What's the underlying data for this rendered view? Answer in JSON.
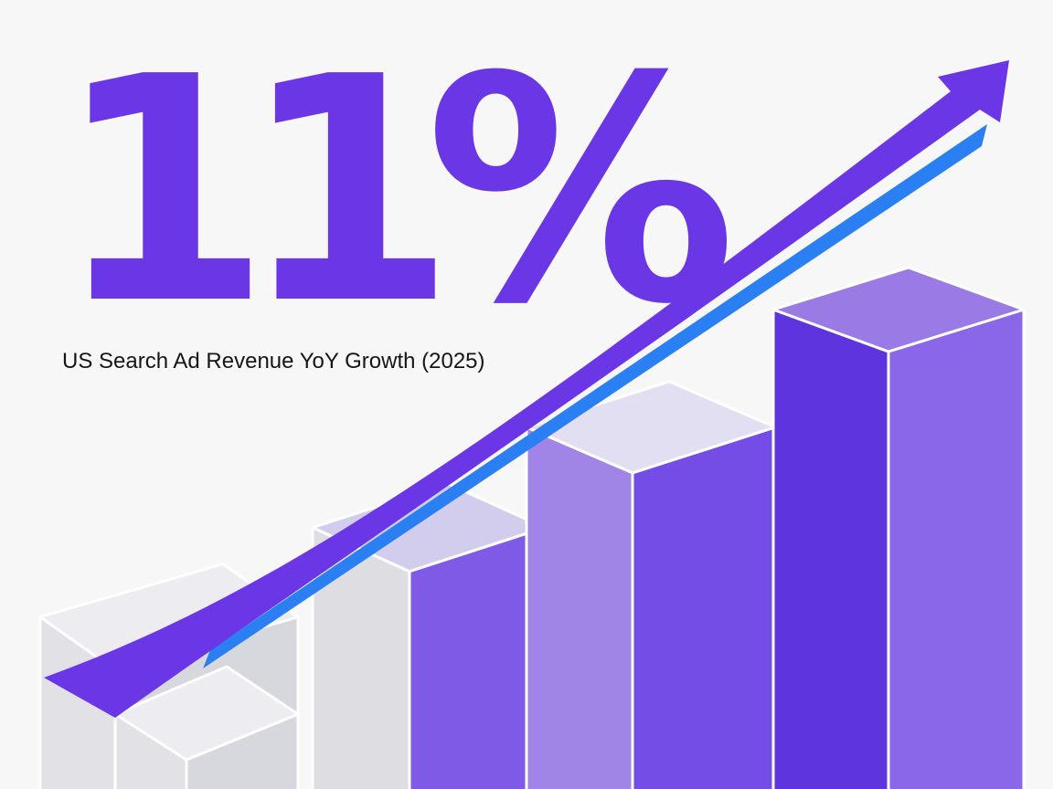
{
  "headline": {
    "value": "11%"
  },
  "subtitle": {
    "text": "US Search Ad Revenue YoY Growth (2025)"
  },
  "colors": {
    "headline": "#6a36e6",
    "background": "#f7f7f8",
    "arrow": "#6a36e6",
    "arrow_shadow": "#2a7ff2",
    "bar_outline": "#ffffff"
  },
  "icons": {
    "arrow": "trend-up-arrow-icon"
  },
  "bars": [
    {
      "label": "bar-1",
      "relative_level": 0.16,
      "colors": {
        "top": "#ececf1",
        "left": "#e1e1e6",
        "right": "#d7d7de"
      }
    },
    {
      "label": "bar-2",
      "relative_level": 0.42,
      "colors": {
        "top": "#d3cded",
        "left": "#dddde2",
        "right": "#7f5ae6"
      }
    },
    {
      "label": "bar-3",
      "relative_level": 0.68,
      "colors": {
        "top": "#e2dff3",
        "left": "#a085e6",
        "right": "#744ce6"
      }
    },
    {
      "label": "bar-4",
      "relative_level": 1.0,
      "colors": {
        "top": "#9a7be6",
        "left": "#5e34df",
        "right": "#8a66e8"
      }
    }
  ]
}
